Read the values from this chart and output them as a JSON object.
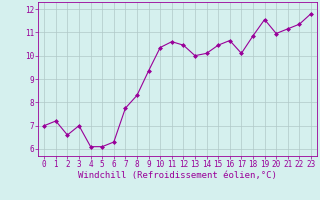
{
  "x": [
    0,
    1,
    2,
    3,
    4,
    5,
    6,
    7,
    8,
    9,
    10,
    11,
    12,
    13,
    14,
    15,
    16,
    17,
    18,
    19,
    20,
    21,
    22,
    23
  ],
  "y": [
    7.0,
    7.2,
    6.6,
    7.0,
    6.1,
    6.1,
    6.3,
    7.75,
    8.3,
    9.35,
    10.35,
    10.6,
    10.45,
    10.0,
    10.1,
    10.45,
    10.65,
    10.1,
    10.85,
    11.55,
    10.95,
    11.15,
    11.35,
    11.8
  ],
  "line_color": "#990099",
  "marker": "D",
  "marker_size": 2.0,
  "bg_color": "#d5f0ee",
  "grid_color": "#b0c8c8",
  "xlabel": "Windchill (Refroidissement éolien,°C)",
  "ylabel_ticks": [
    6,
    7,
    8,
    9,
    10,
    11,
    12
  ],
  "xlim": [
    -0.5,
    23.5
  ],
  "ylim": [
    5.7,
    12.3
  ],
  "xtick_labels": [
    "0",
    "1",
    "2",
    "3",
    "4",
    "5",
    "6",
    "7",
    "8",
    "9",
    "10",
    "11",
    "12",
    "13",
    "14",
    "15",
    "16",
    "17",
    "18",
    "19",
    "20",
    "21",
    "22",
    "23"
  ],
  "font_color": "#990099",
  "tick_fontsize": 5.5,
  "xlabel_fontsize": 6.5
}
